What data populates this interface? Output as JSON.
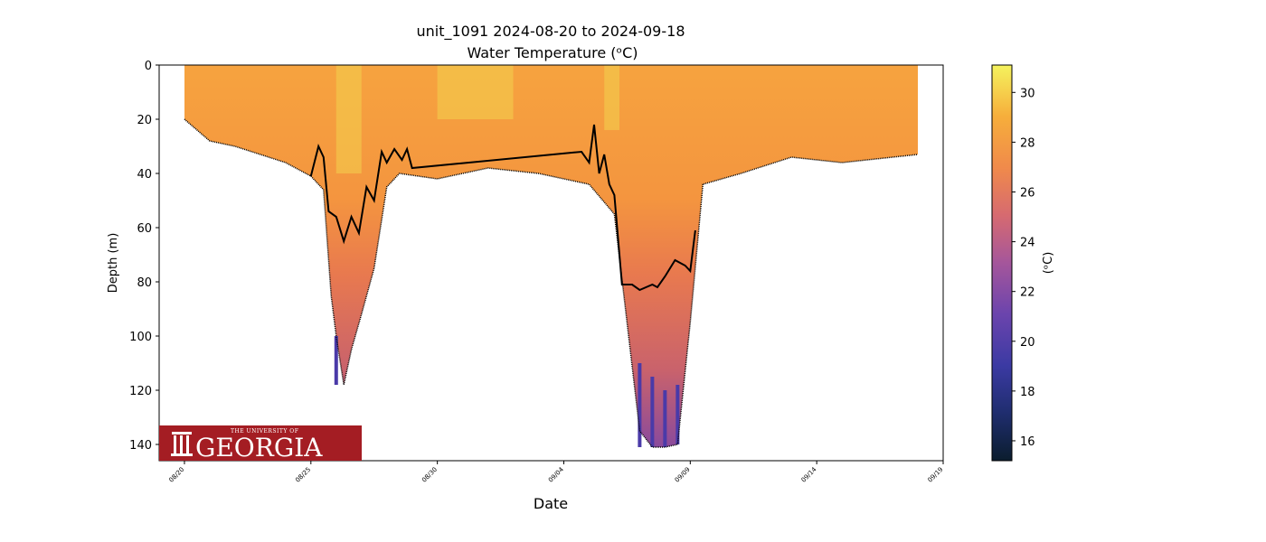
{
  "chart_data": {
    "type": "heatmap",
    "title": "unit_1091 2024-08-20 to 2024-09-18",
    "subtitle": "Water Temperature (ᵒC)",
    "xlabel": "Date",
    "ylabel": "Depth (m)",
    "x_ticks": [
      "08/20",
      "08/25",
      "08/30",
      "09/04",
      "09/09",
      "09/14",
      "09/19"
    ],
    "y_ticks": [
      0,
      20,
      40,
      60,
      80,
      100,
      120,
      140
    ],
    "xlim": [
      "2024-08-19",
      "2024-09-19"
    ],
    "ylim": [
      146,
      0
    ],
    "y_inverted": true,
    "colorbar": {
      "label": "(ᵒC)",
      "ticks": [
        16,
        18,
        20,
        22,
        24,
        26,
        28,
        30
      ],
      "range": [
        15.2,
        31.1
      ],
      "colormap": [
        "#0b1d2e",
        "#2b2f8a",
        "#5b3ab0",
        "#a45a9e",
        "#d86a6a",
        "#f08b4a",
        "#f7a63f",
        "#f2cf48",
        "#f5f15c"
      ]
    },
    "profile_max_depth": [
      {
        "date": "2024-08-20",
        "depth": 20
      },
      {
        "date": "2024-08-21",
        "depth": 28
      },
      {
        "date": "2024-08-22",
        "depth": 30
      },
      {
        "date": "2024-08-23",
        "depth": 33
      },
      {
        "date": "2024-08-24",
        "depth": 36
      },
      {
        "date": "2024-08-25",
        "depth": 41
      },
      {
        "date": "2024-08-25.5",
        "depth": 46
      },
      {
        "date": "2024-08-25.8",
        "depth": 85
      },
      {
        "date": "2024-08-26",
        "depth": 100
      },
      {
        "date": "2024-08-26.3",
        "depth": 118
      },
      {
        "date": "2024-08-26.6",
        "depth": 105
      },
      {
        "date": "2024-08-27",
        "depth": 92
      },
      {
        "date": "2024-08-27.5",
        "depth": 75
      },
      {
        "date": "2024-08-28",
        "depth": 45
      },
      {
        "date": "2024-08-28.5",
        "depth": 40
      },
      {
        "date": "2024-08-30",
        "depth": 42
      },
      {
        "date": "2024-09-01",
        "depth": 38
      },
      {
        "date": "2024-09-03",
        "depth": 40
      },
      {
        "date": "2024-09-05",
        "depth": 44
      },
      {
        "date": "2024-09-06",
        "depth": 55
      },
      {
        "date": "2024-09-07",
        "depth": 135
      },
      {
        "date": "2024-09-07.5",
        "depth": 141
      },
      {
        "date": "2024-09-08",
        "depth": 141
      },
      {
        "date": "2024-09-08.5",
        "depth": 140
      },
      {
        "date": "2024-09-09",
        "depth": 95
      },
      {
        "date": "2024-09-09.5",
        "depth": 44
      },
      {
        "date": "2024-09-11",
        "depth": 40
      },
      {
        "date": "2024-09-13",
        "depth": 34
      },
      {
        "date": "2024-09-15",
        "depth": 36
      },
      {
        "date": "2024-09-17",
        "depth": 34
      },
      {
        "date": "2024-09-18",
        "depth": 33
      }
    ],
    "series": [
      {
        "type": "line",
        "color": "#000000",
        "x": [
          "2024-08-25",
          "2024-08-25.3",
          "2024-08-25.5",
          "2024-08-25.7",
          "2024-08-26",
          "2024-08-26.3",
          "2024-08-26.6",
          "2024-08-26.9",
          "2024-08-27.2",
          "2024-08-27.5",
          "2024-08-27.8",
          "2024-08-28",
          "2024-08-28.3",
          "2024-08-28.6",
          "2024-08-28.8",
          "2024-08-29",
          "2024-09-04.7",
          "2024-09-05",
          "2024-09-05.2",
          "2024-09-05.4",
          "2024-09-05.6",
          "2024-09-05.8",
          "2024-09-06",
          "2024-09-06.3",
          "2024-09-06.7",
          "2024-09-07",
          "2024-09-07.5",
          "2024-09-07.7",
          "2024-09-08",
          "2024-09-08.4",
          "2024-09-08.8",
          "2024-09-09",
          "2024-09-09.2"
        ],
        "y": [
          41,
          30,
          34,
          54,
          56,
          65,
          56,
          62,
          45,
          50,
          32,
          36,
          31,
          35,
          31,
          38,
          32,
          36,
          22,
          40,
          33,
          44,
          48,
          81,
          81,
          83,
          81,
          82,
          78,
          72,
          74,
          76,
          61
        ]
      }
    ],
    "logo": {
      "small": "THE UNIVERSITY OF",
      "big": "GEORGIA",
      "color": "#a41d23"
    }
  }
}
